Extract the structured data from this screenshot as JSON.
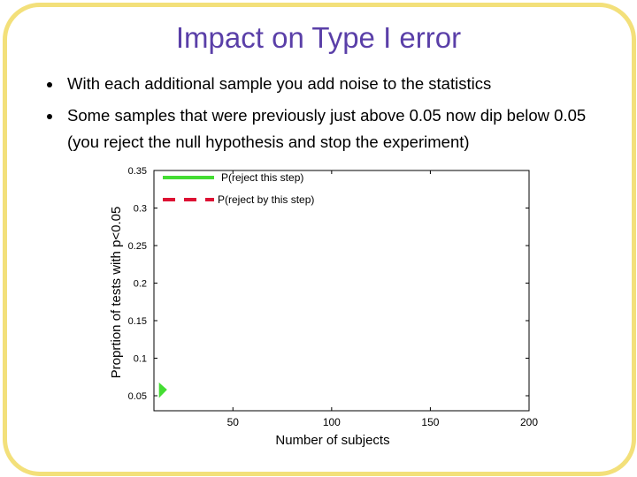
{
  "slide": {
    "title": "Impact on Type I error",
    "bullets": [
      "With each additional sample you add noise to the statistics",
      "Some samples that were previously just above 0.05 now dip below 0.05 (you reject the null hypothesis and stop the experiment)"
    ]
  },
  "colors": {
    "title": "#5a3fa8",
    "border": "#f3e07a",
    "series_reject_this_step": "#44dd33",
    "series_reject_by_this_step": "#dd1133"
  },
  "chart_data": {
    "type": "line",
    "xlabel": "Number of subjects",
    "ylabel": "Proprtion of tests with p<0.05",
    "xlim": [
      10,
      200
    ],
    "ylim": [
      0.03,
      0.35
    ],
    "xticks": [
      50,
      100,
      150,
      200
    ],
    "yticks": [
      0.05,
      0.1,
      0.15,
      0.2,
      0.25,
      0.3,
      0.35
    ],
    "xtick_labels": [
      "50",
      "100",
      "150",
      "200"
    ],
    "ytick_labels": [
      "0.05",
      "0.1",
      "0.15",
      "0.2",
      "0.25",
      "0.3",
      "0.35"
    ],
    "legend_position": "top-left",
    "grid": false,
    "series": [
      {
        "name": "P(reject this step)",
        "style": "solid",
        "x": [
          13,
          13,
          16
        ],
        "y": [
          0.05,
          0.065,
          0.058
        ]
      },
      {
        "name": "P(reject by this step)",
        "style": "dashed",
        "x": [],
        "y": []
      }
    ]
  }
}
